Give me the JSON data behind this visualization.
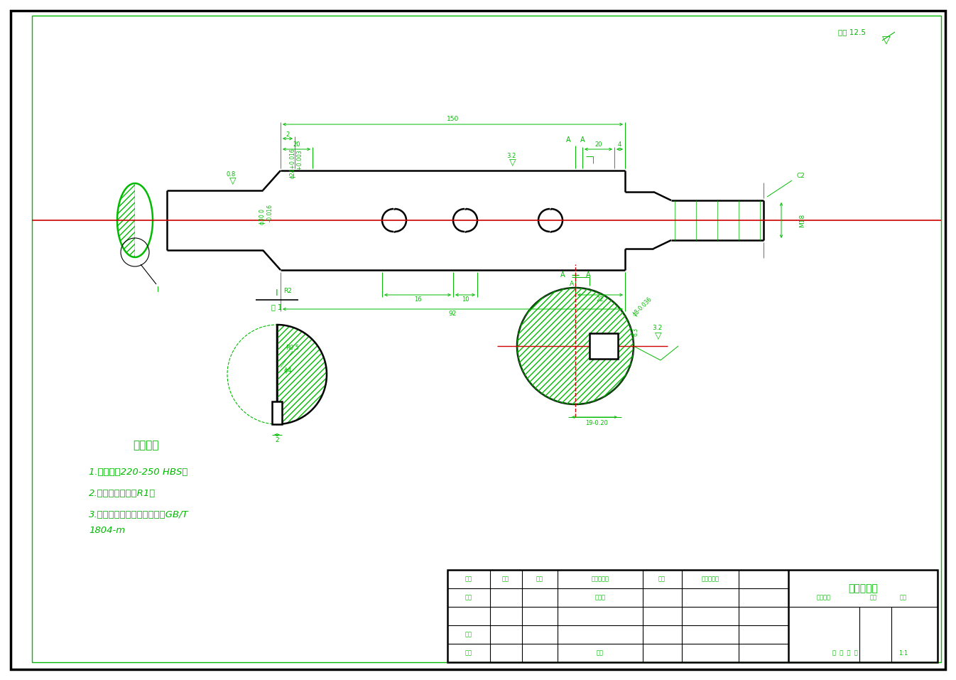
{
  "bg_color": "#ffffff",
  "line_color": "#00bb00",
  "red_line_color": "#cc0000",
  "black_line_color": "#000000",
  "font_color": "#00bb00",
  "title": "颗粒主动轴",
  "tech_req_title": "技术要求",
  "tech_req_1": "1.调质处理220-250 HBS。",
  "tech_req_2": "2.未注圆角半径为R1。",
  "tech_req_3": "3.未注公差尺寸的公差等级为GB/T",
  "tech_req_4": "1804-m",
  "other_roughness": "其余12.5",
  "scale_text": "1:1",
  "table_labels": {
    "biaoji": "标记",
    "chushu": "处数",
    "fenqu": "分区",
    "gengai": "更改文件号",
    "qianming": "签名",
    "nianyueri": "年、月、日",
    "sheji": "设计",
    "biaozhunhua": "标准化",
    "jieduan": "阶段标识",
    "zhongliang": "重量",
    "bili": "比例",
    "shenhe": "审核",
    "gongyi": "工艺",
    "pizhun": "批准",
    "zhang": "共  张  第  张"
  }
}
